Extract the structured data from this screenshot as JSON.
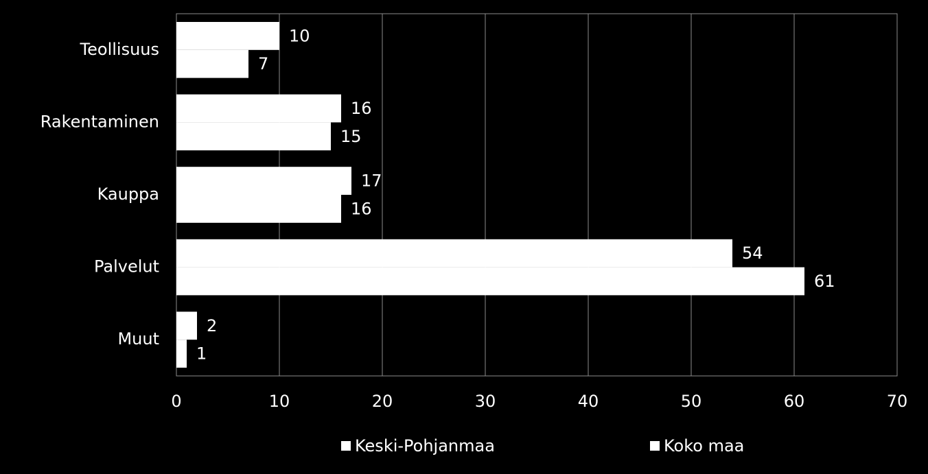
{
  "chart_data": {
    "type": "hbar",
    "categories": [
      "Teollisuus",
      "Rakentaminen",
      "Kauppa",
      "Palvelut",
      "Muut"
    ],
    "series": [
      {
        "name": "Keski-Pohjanmaa",
        "color": "#ffffff",
        "values": [
          10,
          16,
          17,
          54,
          2
        ]
      },
      {
        "name": "Koko maa",
        "color": "#ffffff",
        "values": [
          7,
          15,
          16,
          61,
          1
        ]
      }
    ],
    "xlim": [
      0,
      70
    ],
    "xticks": [
      0,
      10,
      20,
      30,
      40,
      50,
      60,
      70
    ],
    "grid": true,
    "legend": "bottom"
  }
}
